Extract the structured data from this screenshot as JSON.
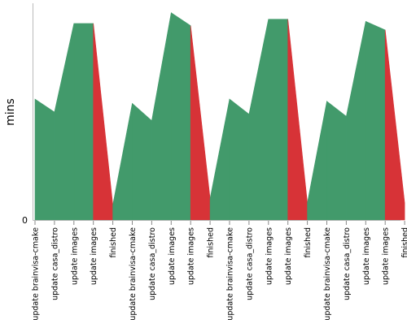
{
  "chart_data": {
    "type": "area",
    "title": "",
    "xlabel": "",
    "ylabel": "mins",
    "y_tick_labels": [
      "0"
    ],
    "ylim": [
      0,
      100
    ],
    "grid": false,
    "legend": "none",
    "categories": [
      "update brainvisa-cmake",
      "update casa_distro",
      "update images",
      "update images",
      "finished",
      "update brainvisa-cmake",
      "update casa_distro",
      "update images",
      "update images",
      "finished",
      "update brainvisa-cmake",
      "update casa_distro",
      "update images",
      "update images",
      "finished",
      "update brainvisa-cmake",
      "update casa_distro",
      "update images",
      "update images",
      "finished"
    ],
    "values": [
      56,
      50,
      91,
      91,
      7,
      54,
      46,
      96,
      90,
      10,
      56,
      49,
      93,
      93,
      8,
      55,
      48,
      92,
      88,
      8
    ],
    "status": [
      "ok",
      "ok",
      "ok",
      "ok",
      "fail",
      "ok",
      "ok",
      "ok",
      "ok",
      "fail",
      "ok",
      "ok",
      "ok",
      "ok",
      "fail",
      "ok",
      "ok",
      "ok",
      "ok",
      "fail"
    ],
    "colors": {
      "ok": "#429a6b",
      "fail": "#d73337",
      "axis": "#bbbbbb"
    }
  }
}
